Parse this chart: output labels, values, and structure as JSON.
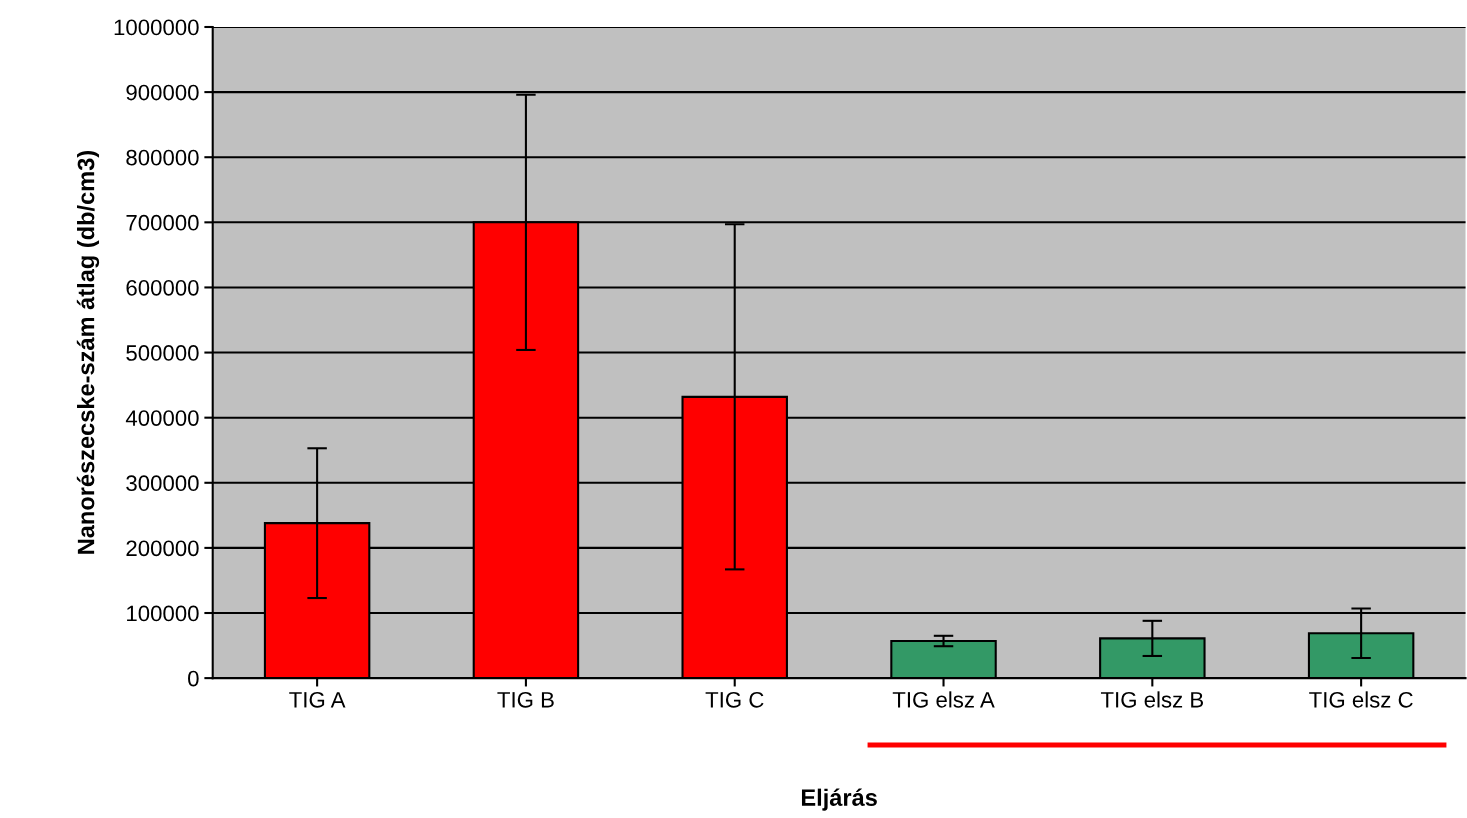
{
  "chart_data": {
    "type": "bar",
    "xlabel": "Eljárás",
    "ylabel": "Nanorészecske-szám átlag (db/cm3)",
    "categories": [
      "TIG A",
      "TIG B",
      "TIG C",
      "TIG elsz A",
      "TIG elsz B",
      "TIG elsz C"
    ],
    "values": [
      238000,
      700000,
      432000,
      57000,
      61000,
      69000
    ],
    "errors": [
      115000,
      196000,
      265000,
      8000,
      27000,
      38000
    ],
    "colors": [
      "#ff0000",
      "#ff0000",
      "#ff0000",
      "#339966",
      "#339966",
      "#339966"
    ],
    "ylim": [
      0,
      1000000
    ],
    "yticks": [
      0,
      100000,
      200000,
      300000,
      400000,
      500000,
      600000,
      700000,
      800000,
      900000,
      1000000
    ],
    "grid": "y",
    "legend": false
  }
}
